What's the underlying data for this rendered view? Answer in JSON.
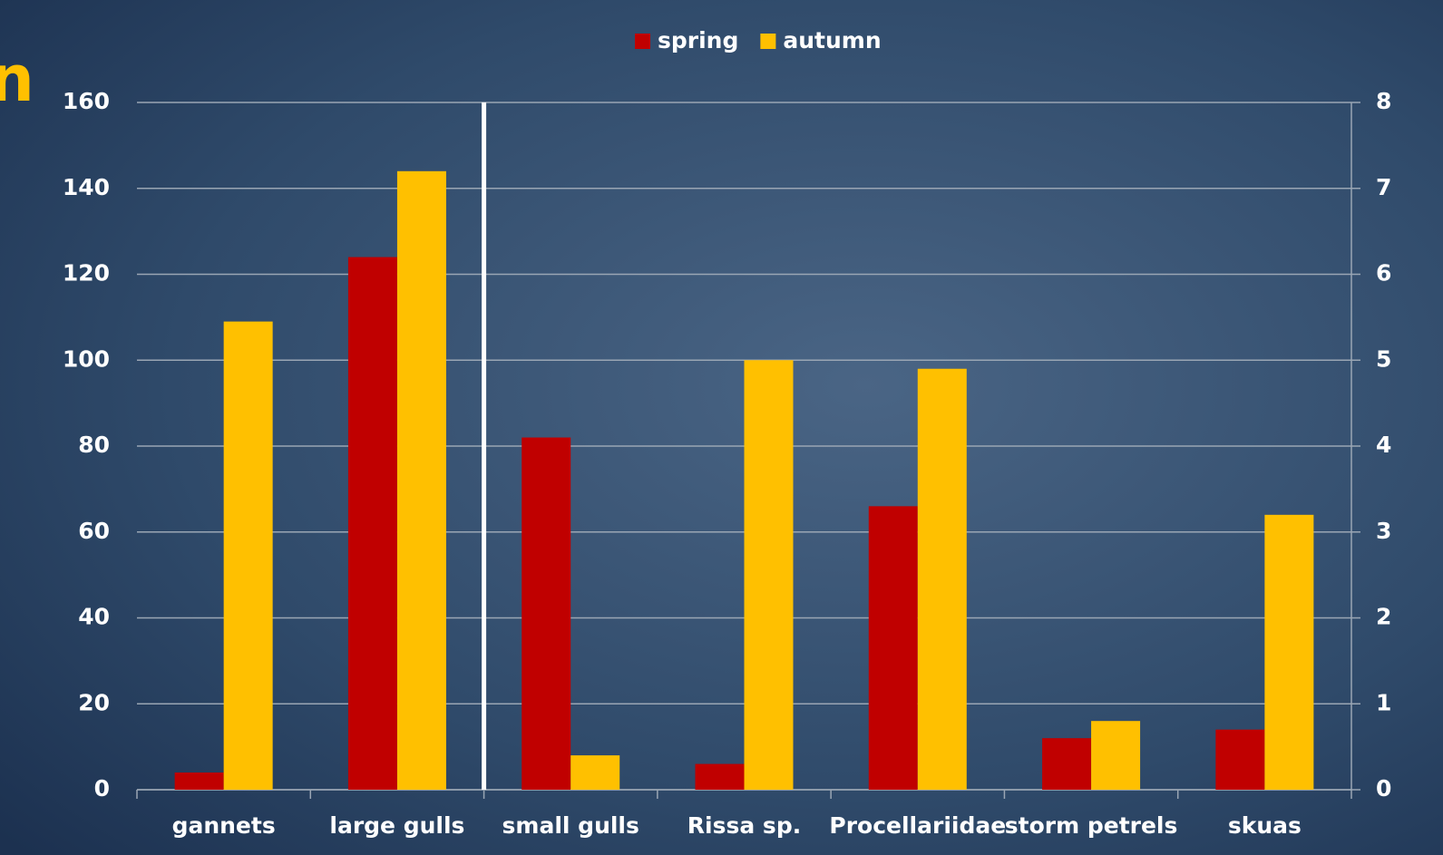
{
  "chart_data": {
    "type": "bar",
    "title": "n",
    "categories": [
      "gannets",
      "large gulls",
      "small gulls",
      "Rissa sp.",
      "Procellariidae",
      "storm petrels",
      "skuas"
    ],
    "axis_by_category": [
      "y",
      "y",
      "y2",
      "y2",
      "y2",
      "y2",
      "y2"
    ],
    "series": [
      {
        "name": "spring",
        "color": "#c00000",
        "values": [
          4,
          124,
          4.1,
          0.3,
          3.3,
          0.6,
          0.7
        ]
      },
      {
        "name": "autumn",
        "color": "#ffc000",
        "values": [
          109,
          144,
          0.4,
          5.0,
          4.9,
          0.8,
          3.2
        ]
      }
    ],
    "ylim": [
      0,
      160
    ],
    "yticks": [
      0,
      20,
      40,
      60,
      80,
      100,
      120,
      140,
      160
    ],
    "y2lim": [
      0,
      8
    ],
    "y2ticks": [
      0,
      1,
      2,
      3,
      4,
      5,
      6,
      7,
      8
    ],
    "grid": true,
    "legend": "top"
  }
}
